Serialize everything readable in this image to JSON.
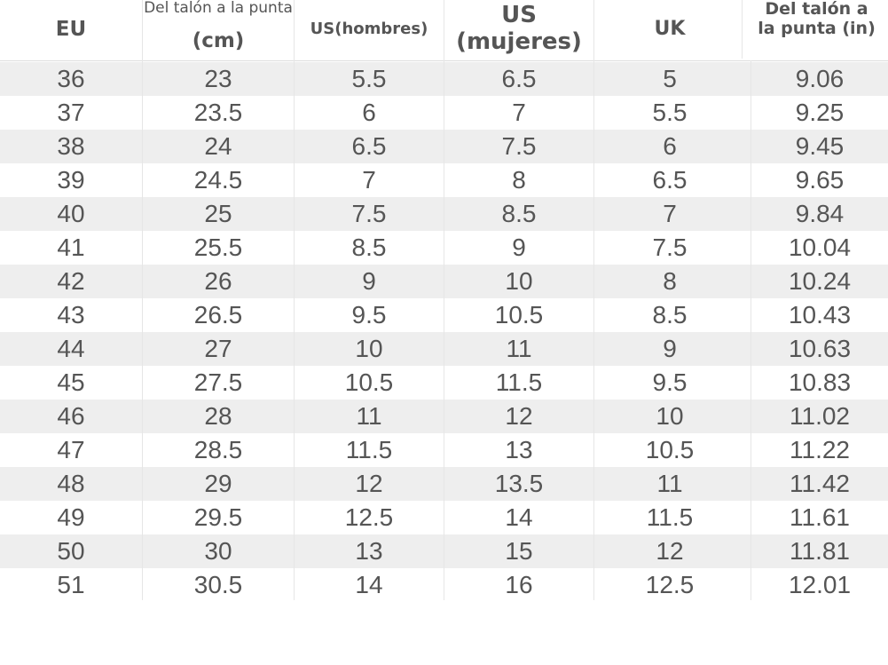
{
  "table": {
    "headers": {
      "eu": "EU",
      "cm_line1": "Del talón a la punta",
      "cm_line2": "(cm)",
      "us_men": "US(hombres)",
      "us_women": "US (mujeres)",
      "uk": "UK",
      "in_line1": "Del talón a",
      "in_line2": "la punta (in)"
    },
    "rows": [
      {
        "eu": "36",
        "cm": "23",
        "usm": "5.5",
        "usw": "6.5",
        "uk": "5",
        "inch": "9.06"
      },
      {
        "eu": "37",
        "cm": "23.5",
        "usm": "6",
        "usw": "7",
        "uk": "5.5",
        "inch": "9.25"
      },
      {
        "eu": "38",
        "cm": "24",
        "usm": "6.5",
        "usw": "7.5",
        "uk": "6",
        "inch": "9.45"
      },
      {
        "eu": "39",
        "cm": "24.5",
        "usm": "7",
        "usw": "8",
        "uk": "6.5",
        "inch": "9.65"
      },
      {
        "eu": "40",
        "cm": "25",
        "usm": "7.5",
        "usw": "8.5",
        "uk": "7",
        "inch": "9.84"
      },
      {
        "eu": "41",
        "cm": "25.5",
        "usm": "8.5",
        "usw": "9",
        "uk": "7.5",
        "inch": "10.04"
      },
      {
        "eu": "42",
        "cm": "26",
        "usm": "9",
        "usw": "10",
        "uk": "8",
        "inch": "10.24"
      },
      {
        "eu": "43",
        "cm": "26.5",
        "usm": "9.5",
        "usw": "10.5",
        "uk": "8.5",
        "inch": "10.43"
      },
      {
        "eu": "44",
        "cm": "27",
        "usm": "10",
        "usw": "11",
        "uk": "9",
        "inch": "10.63"
      },
      {
        "eu": "45",
        "cm": "27.5",
        "usm": "10.5",
        "usw": "11.5",
        "uk": "9.5",
        "inch": "10.83"
      },
      {
        "eu": "46",
        "cm": "28",
        "usm": "11",
        "usw": "12",
        "uk": "10",
        "inch": "11.02"
      },
      {
        "eu": "47",
        "cm": "28.5",
        "usm": "11.5",
        "usw": "13",
        "uk": "10.5",
        "inch": "11.22"
      },
      {
        "eu": "48",
        "cm": "29",
        "usm": "12",
        "usw": "13.5",
        "uk": "11",
        "inch": "11.42"
      },
      {
        "eu": "49",
        "cm": "29.5",
        "usm": "12.5",
        "usw": "14",
        "uk": "11.5",
        "inch": "11.61"
      },
      {
        "eu": "50",
        "cm": "30",
        "usm": "13",
        "usw": "15",
        "uk": "12",
        "inch": "11.81"
      },
      {
        "eu": "51",
        "cm": "30.5",
        "usm": "14",
        "usw": "16",
        "uk": "12.5",
        "inch": "12.01"
      }
    ]
  },
  "colors": {
    "shade_row": "#eeeeee",
    "text": "#555555"
  }
}
